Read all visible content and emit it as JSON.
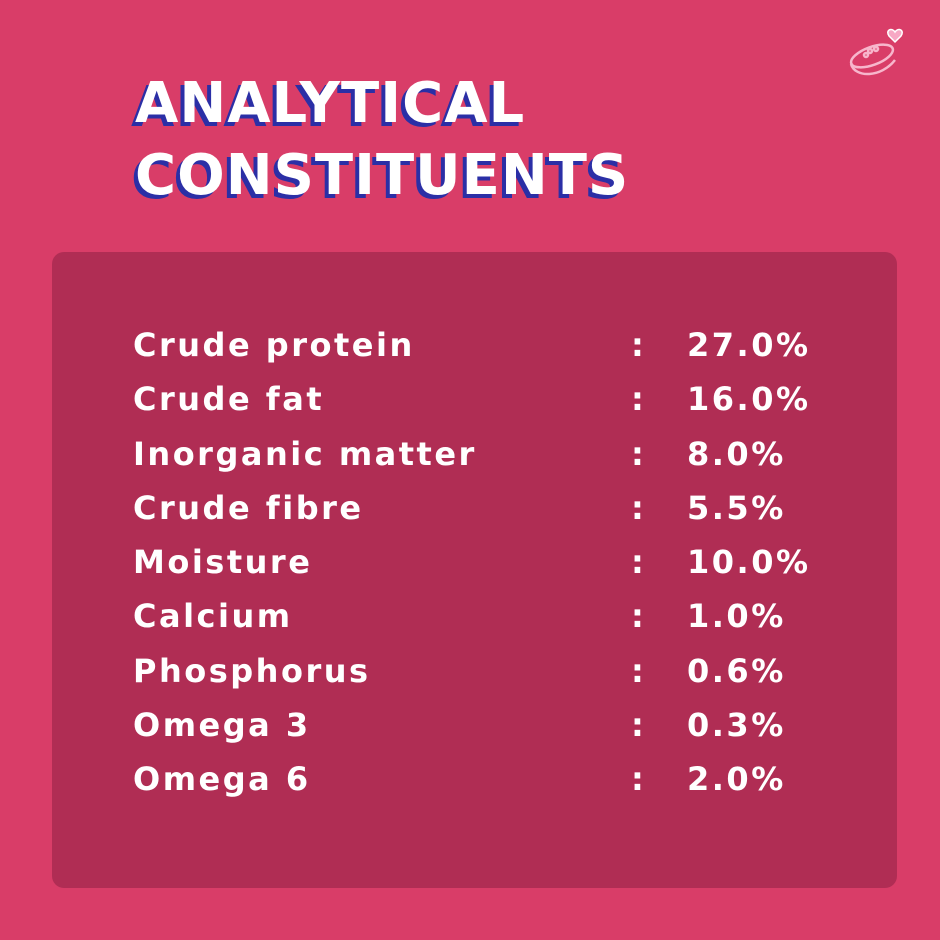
{
  "title": [
    "ANALYTICAL",
    "CONSTITUENTS"
  ],
  "table": {
    "rows": [
      [
        "Crude protein",
        ":",
        "27.0%"
      ],
      [
        "Crude fat",
        ":",
        "16.0%"
      ],
      [
        "Inorganic matter",
        ":",
        "8.0%"
      ],
      [
        "Crude fibre",
        ":",
        "5.5%"
      ],
      [
        "Moisture",
        ":",
        "10.0%"
      ],
      [
        "Calcium",
        ":",
        "1.0%"
      ],
      [
        "Phosphorus",
        ":",
        "0.6%"
      ],
      [
        "Omega 3",
        ":",
        "0.3%"
      ],
      [
        "Omega 6",
        ":",
        "2.0%"
      ]
    ]
  }
}
